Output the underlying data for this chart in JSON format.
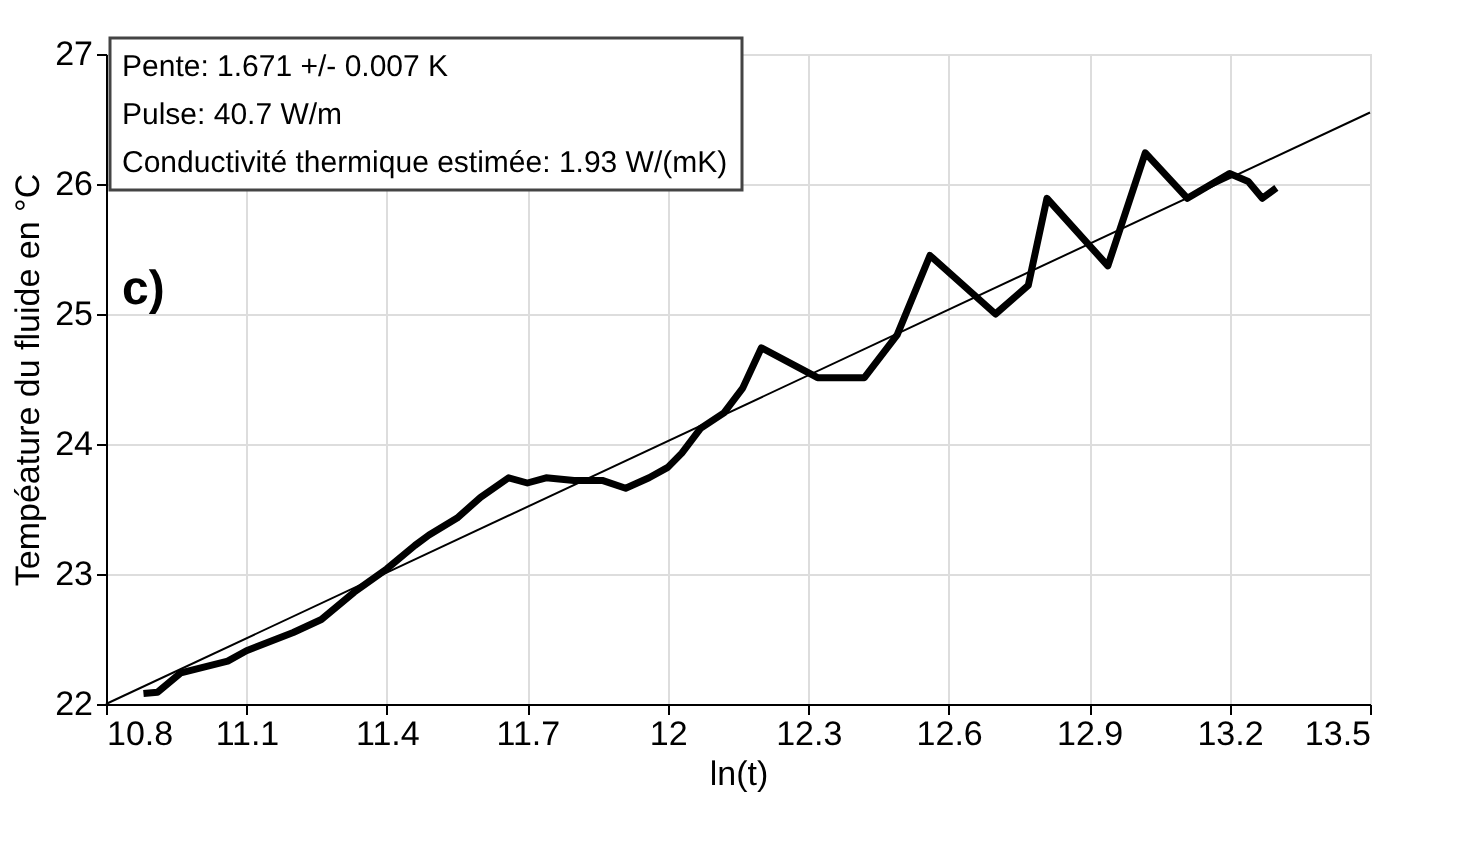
{
  "chart_data": {
    "type": "line",
    "xlabel": "ln(t)",
    "ylabel": "Tempéature du fluide en °C",
    "xlim": [
      10.8,
      13.5
    ],
    "xticks": [
      10.8,
      11.1,
      11.4,
      11.7,
      12,
      12.3,
      12.6,
      12.9,
      13.2,
      13.5
    ],
    "ylim": [
      22,
      27
    ],
    "yticks": [
      22,
      23,
      24,
      25,
      26,
      27
    ],
    "grid": true,
    "line_style": "solid",
    "annotations": [
      "Pente: 1.671 +/- 0.007  K",
      "Pulse: 40.7  W/m",
      "Conductivité thermique estimée: 1.93  W/(mK)",
      "c)"
    ],
    "series": [
      {
        "color": "#000000",
        "x": [
          10.88,
          10.91,
          10.96,
          11.06,
          11.1,
          11.2,
          11.26,
          11.33,
          11.4,
          11.46,
          11.49,
          11.55,
          11.6,
          11.66,
          11.7,
          11.74,
          11.8,
          11.86,
          11.91,
          11.96,
          12.0,
          12.03,
          12.07,
          12.12,
          12.16,
          12.2,
          12.32,
          12.42,
          12.49,
          12.56,
          12.7,
          12.77,
          12.81,
          12.94,
          13.02,
          13.11,
          13.2,
          13.24,
          13.27,
          13.3
        ],
        "values": [
          22.08,
          22.09,
          22.24,
          22.33,
          22.41,
          22.55,
          22.65,
          22.86,
          23.04,
          23.22,
          23.3,
          23.43,
          23.59,
          23.74,
          23.7,
          23.74,
          23.72,
          23.72,
          23.66,
          23.74,
          23.82,
          23.93,
          24.12,
          24.24,
          24.43,
          24.74,
          24.51,
          24.51,
          24.84,
          25.45,
          25.0,
          25.22,
          25.89,
          25.37,
          26.24,
          25.89,
          26.08,
          26.02,
          25.89,
          25.97
        ]
      },
      {
        "type": "line",
        "color": "#000000",
        "x": [
          10.8,
          13.5
        ],
        "values": [
          22.0,
          26.55
        ]
      }
    ]
  }
}
